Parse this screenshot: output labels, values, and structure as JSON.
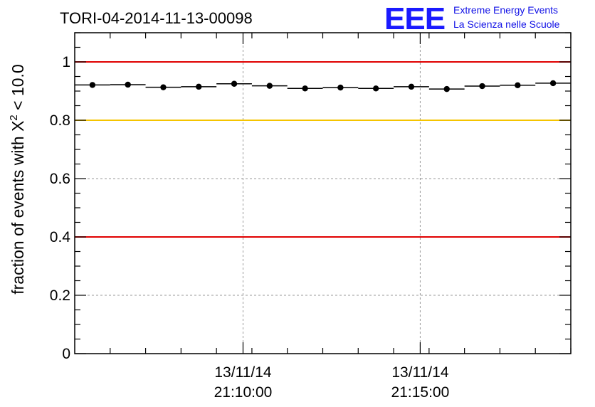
{
  "header": {
    "title": "TORI-04-2014-11-13-00098"
  },
  "logo": {
    "mark": "EEE",
    "line1": "Extreme Energy Events",
    "line2": "La Scienza nelle Scuole"
  },
  "chart_data": {
    "type": "scatter",
    "title": "TORI-04-2014-11-13-00098",
    "ylabel_prefix": "fraction of events with ",
    "ylabel_symbol": "X",
    "ylabel_exponent": "2",
    "ylabel_suffix": " < 10.0",
    "ylim": [
      0,
      1.1
    ],
    "xlim_minutes": [
      0,
      16.8
    ],
    "y_ticks": [
      "0",
      "0.2",
      "0.4",
      "0.6",
      "0.8",
      "1"
    ],
    "y_tick_values": [
      0,
      0.2,
      0.4,
      0.6,
      0.8,
      1.0
    ],
    "x_ticks": [
      {
        "date": "13/11/14",
        "time": "21:10:00",
        "minute": 5.7
      },
      {
        "date": "13/11/14",
        "time": "21:15:00",
        "minute": 11.7
      }
    ],
    "reference_lines": [
      {
        "y": 1.0,
        "color": "#e00000"
      },
      {
        "y": 0.8,
        "color": "#f5c400"
      },
      {
        "y": 0.4,
        "color": "#e00000"
      }
    ],
    "grid": true,
    "series": [
      {
        "x": [
          0.6,
          1.8,
          3.0,
          4.2,
          5.4,
          6.6,
          7.8,
          9.0,
          10.2,
          11.4,
          12.6,
          13.8,
          15.0,
          16.2
        ],
        "xerr": 0.6,
        "y": [
          0.921,
          0.922,
          0.913,
          0.915,
          0.925,
          0.918,
          0.909,
          0.912,
          0.909,
          0.915,
          0.907,
          0.917,
          0.92,
          0.927
        ]
      }
    ]
  }
}
